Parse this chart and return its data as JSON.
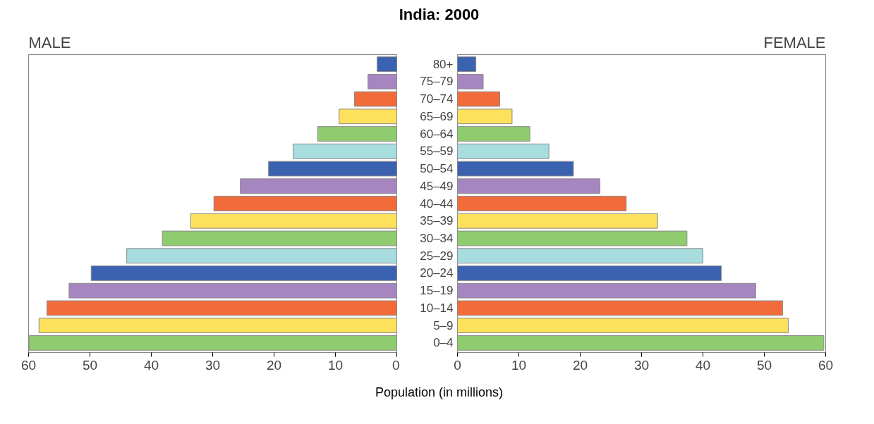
{
  "chart_data": [
    {
      "type": "bar",
      "orientation": "horizontal",
      "title": "India: 2000",
      "subtitle": "MALE",
      "values": [
        3.2,
        4.7,
        6.9,
        9.4,
        12.9,
        16.9,
        20.9,
        25.5,
        29.8,
        33.6,
        38.2,
        44.0,
        49.8,
        53.4,
        57.0,
        58.3,
        59.9
      ],
      "colors": [
        "#3b62b0",
        "#a686c0",
        "#f26b3a",
        "#fde05c",
        "#8fcb6f",
        "#a8dde0",
        "#3b62b0",
        "#a686c0",
        "#f26b3a",
        "#fde05c",
        "#8fcb6f",
        "#a8dde0",
        "#3b62b0",
        "#a686c0",
        "#f26b3a",
        "#fde05c",
        "#8fcb6f"
      ],
      "xlim": [
        60,
        0
      ],
      "xticks": [
        0,
        10,
        20,
        30,
        40,
        50,
        60
      ],
      "grid": false,
      "tick_labels": "x"
    },
    {
      "type": "bar",
      "orientation": "horizontal",
      "title": "FEMALE",
      "xlabel": "Population (in millions)",
      "categories": [
        "80+",
        "75–79",
        "70–74",
        "65–69",
        "60–64",
        "55–59",
        "50–54",
        "45–49",
        "40–44",
        "35–39",
        "30–34",
        "25–29",
        "20–24",
        "15–19",
        "10–14",
        "5–9",
        "0–4"
      ],
      "values": [
        3.0,
        4.2,
        6.9,
        8.9,
        11.8,
        14.9,
        18.9,
        23.2,
        27.5,
        32.6,
        37.4,
        40.0,
        43.0,
        48.6,
        53.0,
        53.9,
        59.7
      ],
      "colors": [
        "#3b62b0",
        "#a686c0",
        "#f26b3a",
        "#fde05c",
        "#8fcb6f",
        "#a8dde0",
        "#3b62b0",
        "#a686c0",
        "#f26b3a",
        "#fde05c",
        "#8fcb6f",
        "#a8dde0",
        "#3b62b0",
        "#a686c0",
        "#f26b3a",
        "#fde05c",
        "#8fcb6f"
      ],
      "xlim": [
        0,
        60
      ],
      "xticks": [
        0,
        10,
        20,
        30,
        40,
        50,
        60
      ],
      "grid": false
    }
  ]
}
